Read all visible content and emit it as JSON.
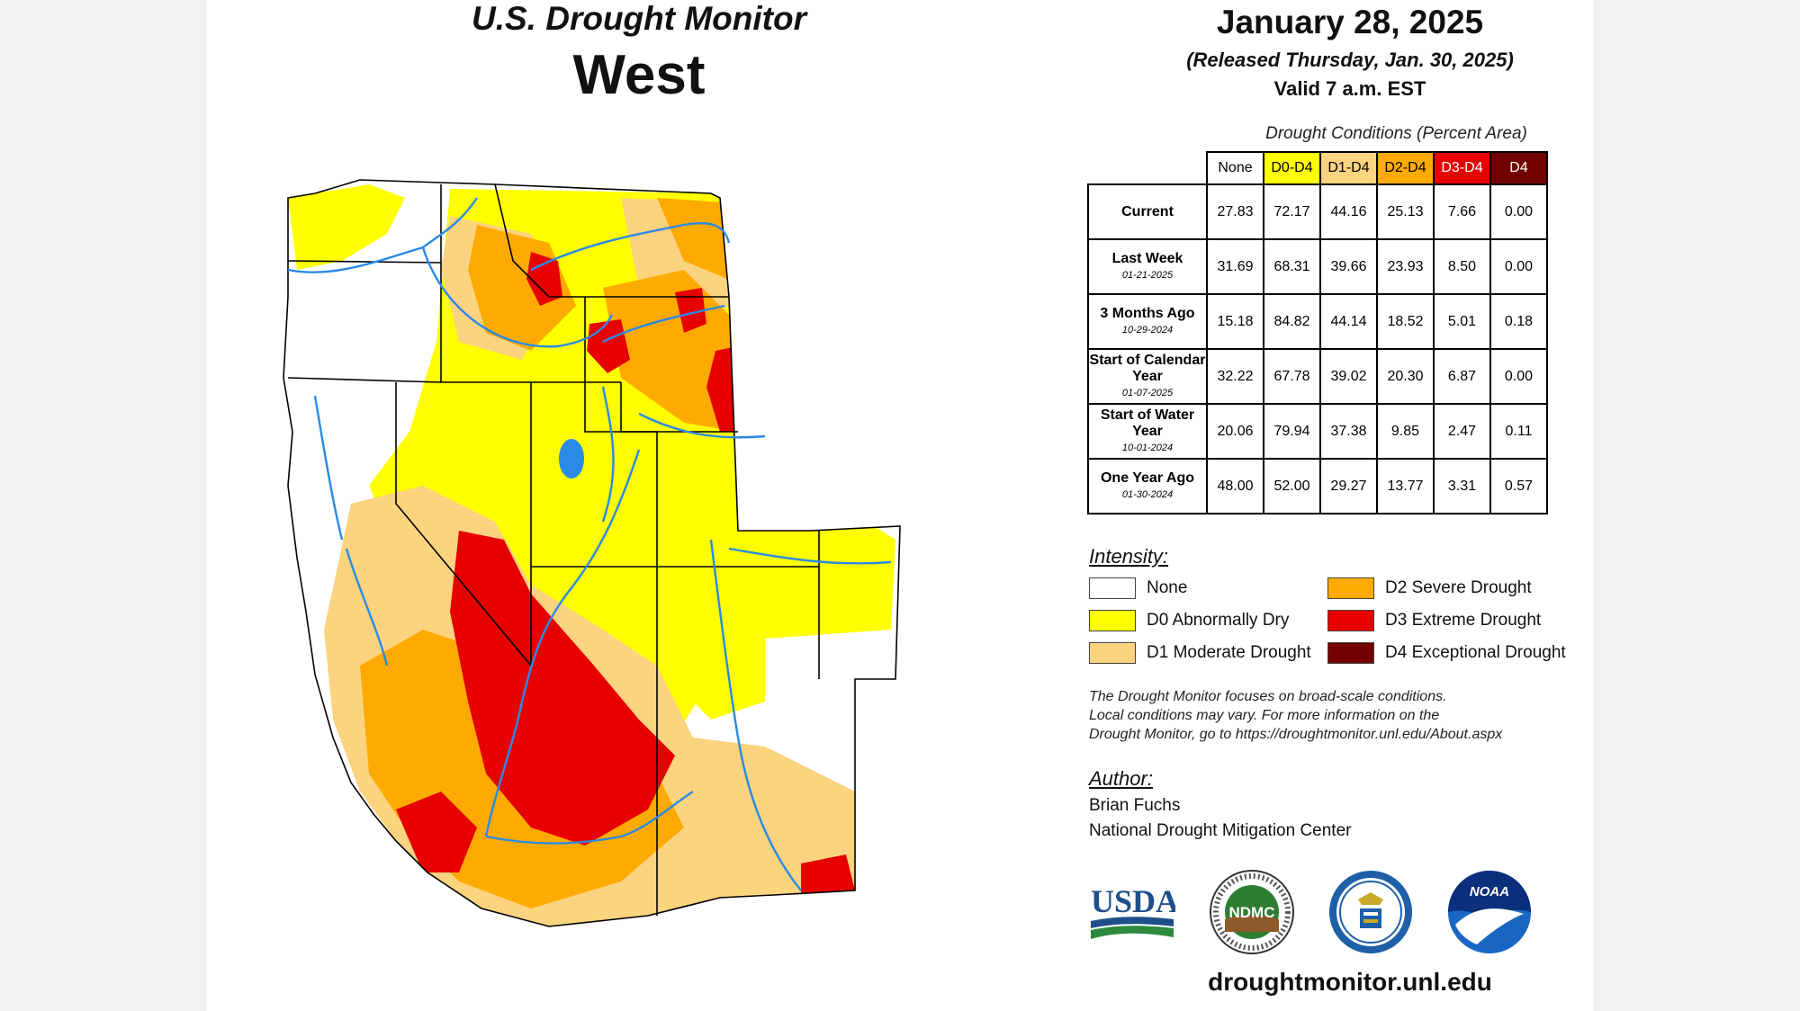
{
  "map": {
    "title_line1": "U.S. Drought Monitor",
    "title_line2": "West",
    "colors": {
      "none": "#ffffff",
      "d0": "#ffff00",
      "d1": "#fcd37f",
      "d2": "#ffaa00",
      "d3": "#e60000",
      "d4": "#730000",
      "rivers": "#2b8ae6",
      "boundaries": "#000000"
    }
  },
  "header": {
    "date": "January 28, 2025",
    "released": "(Released Thursday, Jan. 30, 2025)",
    "valid": "Valid 7 a.m. EST"
  },
  "table": {
    "caption": "Drought Conditions (Percent Area)",
    "columns": [
      {
        "label": "None",
        "color": "#ffffff",
        "text_color": "#000000"
      },
      {
        "label": "D0-D4",
        "color": "#ffff00",
        "text_color": "#000000"
      },
      {
        "label": "D1-D4",
        "color": "#fcd37f",
        "text_color": "#000000"
      },
      {
        "label": "D2-D4",
        "color": "#ffaa00",
        "text_color": "#000000"
      },
      {
        "label": "D3-D4",
        "color": "#e60000",
        "text_color": "#ffffff"
      },
      {
        "label": "D4",
        "color": "#730000",
        "text_color": "#ffffff"
      }
    ],
    "rows": [
      {
        "label": "Current",
        "sub": "",
        "values": [
          "27.83",
          "72.17",
          "44.16",
          "25.13",
          "7.66",
          "0.00"
        ]
      },
      {
        "label": "Last Week",
        "sub": "01-21-2025",
        "values": [
          "31.69",
          "68.31",
          "39.66",
          "23.93",
          "8.50",
          "0.00"
        ]
      },
      {
        "label": "3 Months Ago",
        "sub": "10-29-2024",
        "values": [
          "15.18",
          "84.82",
          "44.14",
          "18.52",
          "5.01",
          "0.18"
        ]
      },
      {
        "label": "Start of Calendar Year",
        "sub": "01-07-2025",
        "values": [
          "32.22",
          "67.78",
          "39.02",
          "20.30",
          "6.87",
          "0.00"
        ]
      },
      {
        "label": "Start of Water Year",
        "sub": "10-01-2024",
        "values": [
          "20.06",
          "79.94",
          "37.38",
          "9.85",
          "2.47",
          "0.11"
        ]
      },
      {
        "label": "One Year Ago",
        "sub": "01-30-2024",
        "values": [
          "48.00",
          "52.00",
          "29.27",
          "13.77",
          "3.31",
          "0.57"
        ]
      }
    ]
  },
  "legend": {
    "title": "Intensity:",
    "items": [
      {
        "label": "None",
        "color": "#ffffff"
      },
      {
        "label": "D0 Abnormally Dry",
        "color": "#ffff00"
      },
      {
        "label": "D1 Moderate Drought",
        "color": "#fcd37f"
      },
      {
        "label": "D2 Severe Drought",
        "color": "#ffaa00"
      },
      {
        "label": "D3 Extreme Drought",
        "color": "#e60000"
      },
      {
        "label": "D4 Exceptional Drought",
        "color": "#730000"
      }
    ]
  },
  "note": {
    "line1": "The Drought Monitor focuses on broad-scale conditions.",
    "line2": "Local conditions may vary. For more information on the",
    "line3": "Drought Monitor, go to https://droughtmonitor.unl.edu/About.aspx"
  },
  "author": {
    "label": "Author:",
    "name": "Brian Fuchs",
    "org": "National Drought Mitigation Center"
  },
  "logos": {
    "usda": "USDA",
    "ndmc": "NDMC",
    "noaa": "NOAA"
  },
  "website": "droughtmonitor.unl.edu"
}
